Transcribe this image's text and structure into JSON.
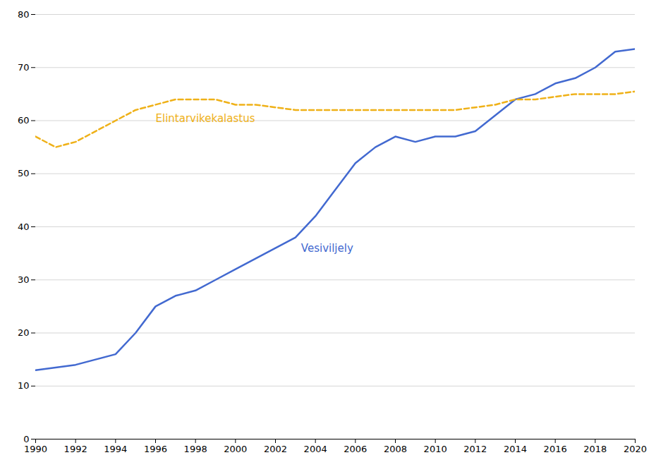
{
  "chart_data": {
    "type": "line",
    "x": [
      1990,
      1991,
      1992,
      1993,
      1994,
      1995,
      1996,
      1997,
      1998,
      1999,
      2000,
      2001,
      2002,
      2003,
      2004,
      2005,
      2006,
      2007,
      2008,
      2009,
      2010,
      2011,
      2012,
      2013,
      2014,
      2015,
      2016,
      2017,
      2018,
      2019,
      2020
    ],
    "series": [
      {
        "name": "Vesiviljely",
        "line_style": "solid",
        "values": [
          13,
          13.5,
          14,
          15,
          16,
          20,
          25,
          27,
          28,
          30,
          32,
          34,
          36,
          38,
          42,
          47,
          52,
          55,
          57,
          56,
          57,
          57,
          58,
          61,
          64,
          65,
          67,
          68,
          70,
          73,
          73.5
        ]
      },
      {
        "name": "Elintarvikekalastus",
        "line_style": "dashed",
        "values": [
          57,
          55,
          56,
          58,
          60,
          62,
          63,
          64,
          64,
          64,
          63,
          63,
          62.5,
          62,
          62,
          62,
          62,
          62,
          62,
          62,
          62,
          62,
          62.5,
          63,
          64,
          64,
          64.5,
          65,
          65,
          65,
          65.5
        ]
      }
    ],
    "xlim": [
      1990,
      2020
    ],
    "xticks": [
      1990,
      1992,
      1994,
      1996,
      1998,
      2000,
      2002,
      2004,
      2006,
      2008,
      2010,
      2012,
      2014,
      2016,
      2018,
      2020
    ],
    "ylim": [
      0,
      80
    ],
    "yticks": [
      0,
      10,
      20,
      30,
      40,
      50,
      60,
      70,
      80
    ],
    "grid": true
  }
}
